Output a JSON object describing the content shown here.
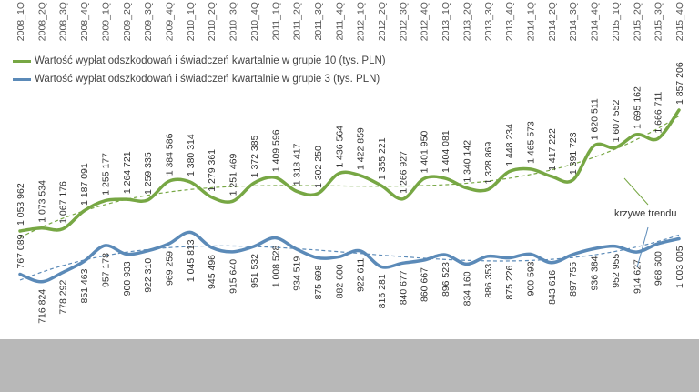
{
  "chart_data": {
    "type": "line",
    "x": [
      "2008_1Q",
      "2008_2Q",
      "2008_3Q",
      "2008_4Q",
      "2009_1Q",
      "2009_2Q",
      "2009_3Q",
      "2009_4Q",
      "2010_1Q",
      "2010_2Q",
      "2010_3Q",
      "2010_4Q",
      "2011_1Q",
      "2011_2Q",
      "2011_3Q",
      "2011_4Q",
      "2012_1Q",
      "2012_2Q",
      "2012_3Q",
      "2012_4Q",
      "2013_1Q",
      "2013_2Q",
      "2013_3Q",
      "2013_4Q",
      "2014_1Q",
      "2014_2Q",
      "2014_3Q",
      "2014_4Q",
      "2015_1Q",
      "2015_2Q",
      "2015_3Q",
      "2015_4Q"
    ],
    "series": [
      {
        "name": "Wartość wypłat odszkodowań i świadczeń kwartalnie w grupie 10 (tys. PLN)",
        "color": "#77a744",
        "values": [
          1053962,
          1073534,
          1067176,
          1187091,
          1255177,
          1264721,
          1259335,
          1384586,
          1380314,
          1279361,
          1251469,
          1372385,
          1409596,
          1318417,
          1302250,
          1436564,
          1422859,
          1355221,
          1266927,
          1401950,
          1404081,
          1340142,
          1328869,
          1448234,
          1465573,
          1417222,
          1391723,
          1620511,
          1607552,
          1695162,
          1666711,
          1857206
        ],
        "labels": [
          "1 053 962",
          "1 073 534",
          "1 067 176",
          "1 187 091",
          "1 255 177",
          "1 264 721",
          "1 259 335",
          "1 384 586",
          "1 380 314",
          "1 279 361",
          "1 251 469",
          "1 372 385",
          "1 409 596",
          "1 318 417",
          "1 302 250",
          "1 436 564",
          "1 422 859",
          "1 355 221",
          "1 266 927",
          "1 401 950",
          "1 404 081",
          "1 340 142",
          "1 328 869",
          "1 448 234",
          "1 465 573",
          "1 417 222",
          "1 391 723",
          "1 620 511",
          "1 607 552",
          "1 695 162",
          "1 666 711",
          "1 857 206"
        ]
      },
      {
        "name": "Wartość wypłat odszkodowań i świadczeń kwartalnie w grupie 3 (tys. PLN)",
        "color": "#5b8ab8",
        "values": [
          767089,
          716824,
          778292,
          851463,
          957178,
          900933,
          922310,
          969259,
          1045813,
          945496,
          915640,
          951532,
          1008528,
          934519,
          875698,
          882600,
          922611,
          816281,
          840677,
          860667,
          896523,
          834160,
          886353,
          875226,
          900593,
          843616,
          897755,
          936384,
          952955,
          914627,
          968600,
          1003005
        ],
        "labels": [
          "767 089",
          "716 824",
          "778 292",
          "851 463",
          "957 178",
          "900 933",
          "922 310",
          "969 259",
          "1 045 813",
          "945 496",
          "915 640",
          "951 532",
          "1 008 528",
          "934 519",
          "875 698",
          "882 600",
          "922 611",
          "816 281",
          "840 677",
          "860 667",
          "896 523",
          "834 160",
          "886 353",
          "875 226",
          "900 593",
          "843 616",
          "897 755",
          "936 384",
          "952 955",
          "914 627",
          "968 600",
          "1 003 005"
        ]
      }
    ],
    "annotation": "krzywe trendu",
    "legend": "top-left",
    "grid": false
  }
}
